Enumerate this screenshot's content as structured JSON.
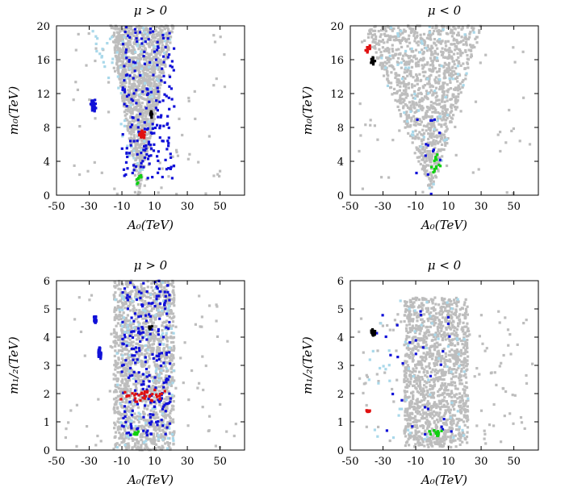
{
  "chart_data": [
    {
      "type": "scatter",
      "title": "μ > 0",
      "xlabel": "A₀(TeV)",
      "ylabel": "m₀(TeV)",
      "xlim": [
        -50,
        65
      ],
      "ylim": [
        0,
        20
      ],
      "xticks": [
        "-50",
        "-30",
        "-10",
        "10",
        "30",
        "50"
      ],
      "yticks": [
        "0",
        "4",
        "8",
        "12",
        "16",
        "20"
      ],
      "colors": {
        "gray": "#bdbdbd",
        "lightblue": "#a9d8ea",
        "blue": "#1010d8",
        "red": "#e01010",
        "green": "#10d010",
        "black": "#000000"
      },
      "series": [
        {
          "color": "gray",
          "shape": "v",
          "count": 1300,
          "region": {
            "apex": [
              0,
              0
            ],
            "left_edge": [
              -17,
              20
            ],
            "right_edge": [
              22,
              20
            ]
          }
        },
        {
          "color": "gray",
          "shape": "scatter",
          "count": 80,
          "region": {
            "x": [
              -40,
              55
            ],
            "y": [
              0,
              20
            ]
          }
        },
        {
          "color": "lightblue",
          "shape": "v",
          "count": 90,
          "region": {
            "apex": [
              0,
              0
            ],
            "left_edge": [
              -30,
              20
            ],
            "right_edge": [
              22,
              20
            ]
          }
        },
        {
          "color": "blue",
          "shape": "vstrip",
          "count": 200,
          "region": {
            "x": [
              -10,
              22
            ],
            "y": [
              2,
              20
            ]
          }
        },
        {
          "color": "blue",
          "shape": "cluster",
          "count": 35,
          "region": {
            "x": [
              -30,
              -25
            ],
            "y": [
              9.5,
              11.5
            ]
          }
        },
        {
          "color": "red",
          "shape": "cluster",
          "count": 18,
          "region": {
            "x": [
              -2,
              6
            ],
            "y": [
              6.5,
              8
            ]
          }
        },
        {
          "color": "black",
          "shape": "cluster",
          "count": 10,
          "region": {
            "x": [
              7,
              9
            ],
            "y": [
              9,
              10
            ]
          }
        },
        {
          "color": "green",
          "shape": "cluster",
          "count": 8,
          "region": {
            "x": [
              -2,
              3
            ],
            "y": [
              1,
              3
            ]
          }
        }
      ]
    },
    {
      "type": "scatter",
      "title": "μ < 0",
      "xlabel": "A₀(TeV)",
      "ylabel": "m₀(TeV)",
      "xlim": [
        -50,
        65
      ],
      "ylim": [
        0,
        20
      ],
      "xticks": [
        "-50",
        "-30",
        "-10",
        "10",
        "30",
        "50"
      ],
      "yticks": [
        "0",
        "4",
        "8",
        "12",
        "16",
        "20"
      ],
      "colors": {
        "gray": "#bdbdbd",
        "lightblue": "#a9d8ea",
        "blue": "#1010d8",
        "red": "#e01010",
        "green": "#10d010",
        "black": "#000000"
      },
      "series": [
        {
          "color": "gray",
          "shape": "v",
          "count": 1100,
          "region": {
            "apex": [
              0,
              0
            ],
            "left_edge": [
              -42,
              20
            ],
            "right_edge": [
              30,
              20
            ]
          }
        },
        {
          "color": "gray",
          "shape": "scatter",
          "count": 60,
          "region": {
            "x": [
              -45,
              62
            ],
            "y": [
              0,
              20
            ]
          }
        },
        {
          "color": "lightblue",
          "shape": "v",
          "count": 60,
          "region": {
            "apex": [
              0,
              0
            ],
            "left_edge": [
              -42,
              20
            ],
            "right_edge": [
              30,
              20
            ]
          }
        },
        {
          "color": "blue",
          "shape": "scatter",
          "count": 14,
          "region": {
            "x": [
              -10,
              5
            ],
            "y": [
              0,
              10
            ]
          }
        },
        {
          "color": "red",
          "shape": "cluster",
          "count": 12,
          "region": {
            "x": [
              -41,
              -37
            ],
            "y": [
              16.5,
              18
            ]
          }
        },
        {
          "color": "black",
          "shape": "cluster",
          "count": 14,
          "region": {
            "x": [
              -38,
              -34
            ],
            "y": [
              15,
              16.5
            ]
          }
        },
        {
          "color": "green",
          "shape": "cluster",
          "count": 14,
          "region": {
            "x": [
              -3,
              6
            ],
            "y": [
              1.5,
              6
            ]
          }
        }
      ]
    },
    {
      "type": "scatter",
      "title": "μ > 0",
      "xlabel": "A₀(TeV)",
      "ylabel": "m₁/₂(TeV)",
      "xlim": [
        -50,
        65
      ],
      "ylim": [
        0,
        6
      ],
      "xticks": [
        "-50",
        "-30",
        "-10",
        "10",
        "30",
        "50"
      ],
      "yticks": [
        "0",
        "1",
        "2",
        "3",
        "4",
        "5",
        "6"
      ],
      "colors": {
        "gray": "#bdbdbd",
        "lightblue": "#a9d8ea",
        "blue": "#1010d8",
        "red": "#e01010",
        "green": "#10d010",
        "black": "#000000"
      },
      "series": [
        {
          "color": "gray",
          "shape": "band",
          "count": 1400,
          "region": {
            "x": [
              -15,
              22
            ],
            "y": [
              0,
              6
            ]
          }
        },
        {
          "color": "gray",
          "shape": "scatter",
          "count": 90,
          "region": {
            "x": [
              -45,
              60
            ],
            "y": [
              0,
              5.5
            ]
          }
        },
        {
          "color": "lightblue",
          "shape": "band",
          "count": 120,
          "region": {
            "x": [
              -15,
              22
            ],
            "y": [
              0,
              6
            ]
          }
        },
        {
          "color": "blue",
          "shape": "band",
          "count": 220,
          "region": {
            "x": [
              -10,
              20
            ],
            "y": [
              0.5,
              6
            ]
          }
        },
        {
          "color": "blue",
          "shape": "cluster",
          "count": 25,
          "region": {
            "x": [
              -28,
              -25
            ],
            "y": [
              4.4,
              4.8
            ]
          }
        },
        {
          "color": "blue",
          "shape": "cluster",
          "count": 35,
          "region": {
            "x": [
              -25,
              -22
            ],
            "y": [
              3.1,
              3.8
            ]
          }
        },
        {
          "color": "red",
          "shape": "cluster",
          "count": 35,
          "region": {
            "x": [
              -15,
              20
            ],
            "y": [
              1.6,
              2.2
            ]
          }
        },
        {
          "color": "black",
          "shape": "cluster",
          "count": 6,
          "region": {
            "x": [
              6,
              9
            ],
            "y": [
              4.2,
              4.5
            ]
          }
        },
        {
          "color": "green",
          "shape": "cluster",
          "count": 8,
          "region": {
            "x": [
              -4,
              2
            ],
            "y": [
              0.4,
              0.8
            ]
          }
        }
      ]
    },
    {
      "type": "scatter",
      "title": "μ < 0",
      "xlabel": "A₀(TeV)",
      "ylabel": "m₁/₂(TeV)",
      "xlim": [
        -50,
        65
      ],
      "ylim": [
        0,
        6
      ],
      "xticks": [
        "-50",
        "-30",
        "-10",
        "10",
        "30",
        "50"
      ],
      "yticks": [
        "0",
        "1",
        "2",
        "3",
        "4",
        "5",
        "6"
      ],
      "colors": {
        "gray": "#bdbdbd",
        "lightblue": "#a9d8ea",
        "blue": "#1010d8",
        "red": "#e01010",
        "green": "#10d010",
        "black": "#000000"
      },
      "series": [
        {
          "color": "gray",
          "shape": "band",
          "count": 1300,
          "region": {
            "x": [
              -17,
              22
            ],
            "y": [
              0.1,
              5.4
            ]
          }
        },
        {
          "color": "gray",
          "shape": "scatter",
          "count": 120,
          "region": {
            "x": [
              -45,
              62
            ],
            "y": [
              0.1,
              5
            ]
          }
        },
        {
          "color": "lightblue",
          "shape": "scatter",
          "count": 60,
          "region": {
            "x": [
              -40,
              22
            ],
            "y": [
              0.3,
              5.4
            ]
          }
        },
        {
          "color": "blue",
          "shape": "scatter",
          "count": 30,
          "region": {
            "x": [
              -37,
              15
            ],
            "y": [
              0.5,
              5
            ]
          }
        },
        {
          "color": "black",
          "shape": "cluster",
          "count": 25,
          "region": {
            "x": [
              -38,
              -34
            ],
            "y": [
              4,
              4.3
            ]
          }
        },
        {
          "color": "red",
          "shape": "cluster",
          "count": 12,
          "region": {
            "x": [
              -41,
              -37
            ],
            "y": [
              1.3,
              1.45
            ]
          }
        },
        {
          "color": "green",
          "shape": "cluster",
          "count": 14,
          "region": {
            "x": [
              -4,
              8
            ],
            "y": [
              0.4,
              0.8
            ]
          }
        }
      ]
    }
  ]
}
